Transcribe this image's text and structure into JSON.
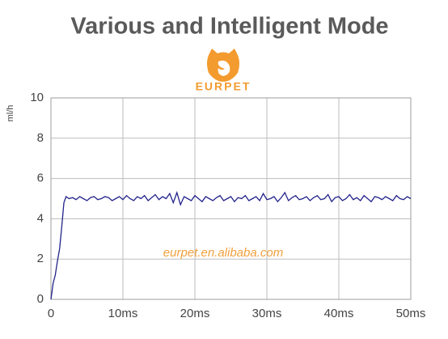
{
  "chart_data": {
    "type": "line",
    "title": "Various and Intelligent Mode",
    "logo_text": "EURPET",
    "watermark": "eurpet.en.alibaba.com",
    "y_label": "ml/h",
    "x": [
      0,
      0.3,
      0.6,
      0.9,
      1.2,
      1.5,
      1.8,
      2.1,
      2.5,
      3,
      3.5,
      4,
      4.5,
      5,
      5.5,
      6,
      6.5,
      7,
      7.5,
      8,
      8.5,
      9,
      9.5,
      10,
      10.5,
      11,
      11.5,
      12,
      12.5,
      13,
      13.5,
      14,
      14.5,
      15,
      15.5,
      16,
      16.5,
      17,
      17.5,
      18,
      18.5,
      19,
      19.5,
      20,
      20.5,
      21,
      21.5,
      22,
      22.5,
      23,
      23.5,
      24,
      24.5,
      25,
      25.5,
      26,
      26.5,
      27,
      27.5,
      28,
      28.5,
      29,
      29.5,
      30,
      30.5,
      31,
      31.5,
      32,
      32.5,
      33,
      33.5,
      34,
      34.5,
      35,
      35.5,
      36,
      36.5,
      37,
      37.5,
      38,
      38.5,
      39,
      39.5,
      40,
      40.5,
      41,
      41.5,
      42,
      42.5,
      43,
      43.5,
      44,
      44.5,
      45,
      45.5,
      46,
      46.5,
      47,
      47.5,
      48,
      48.5,
      49,
      49.5,
      50
    ],
    "series": [
      {
        "color": "#23238c",
        "values": [
          0,
          0.8,
          1.2,
          1.9,
          2.5,
          3.6,
          4.8,
          5.1,
          5.0,
          5.05,
          4.95,
          5.1,
          5.0,
          4.9,
          5.05,
          5.1,
          4.95,
          5.0,
          5.1,
          5.05,
          4.9,
          5.0,
          5.1,
          4.95,
          5.15,
          5.0,
          4.9,
          5.1,
          5.0,
          5.15,
          4.9,
          5.05,
          5.2,
          4.95,
          5.1,
          5.0,
          5.25,
          4.8,
          5.3,
          4.7,
          5.1,
          5.0,
          4.9,
          5.15,
          5.0,
          4.85,
          5.1,
          5.0,
          4.9,
          5.05,
          5.15,
          4.9,
          5.0,
          5.1,
          4.85,
          5.05,
          5.0,
          5.15,
          4.9,
          5.0,
          5.1,
          4.9,
          5.25,
          4.95,
          5.0,
          5.1,
          4.85,
          5.05,
          5.3,
          4.9,
          5.05,
          5.15,
          4.95,
          5.0,
          5.1,
          4.9,
          5.05,
          5.15,
          4.95,
          5.0,
          5.2,
          4.85,
          5.05,
          5.1,
          4.9,
          5.0,
          5.2,
          4.95,
          5.05,
          4.9,
          5.15,
          5.0,
          4.85,
          5.1,
          5.05,
          4.95,
          5.1,
          5.0,
          4.9,
          5.15,
          5.0,
          4.95,
          5.1,
          5.0
        ]
      }
    ],
    "xlim": [
      0,
      50
    ],
    "ylim": [
      0,
      10
    ],
    "xticks": [
      0,
      {
        "value": 10,
        "label": "10ms"
      },
      {
        "value": 20,
        "label": "20ms"
      },
      {
        "value": 30,
        "label": "30ms"
      },
      {
        "value": 40,
        "label": "40ms"
      },
      {
        "value": 50,
        "label": "50ms"
      }
    ],
    "yticks": [
      0,
      2,
      4,
      6,
      8,
      10
    ],
    "grid": true
  }
}
